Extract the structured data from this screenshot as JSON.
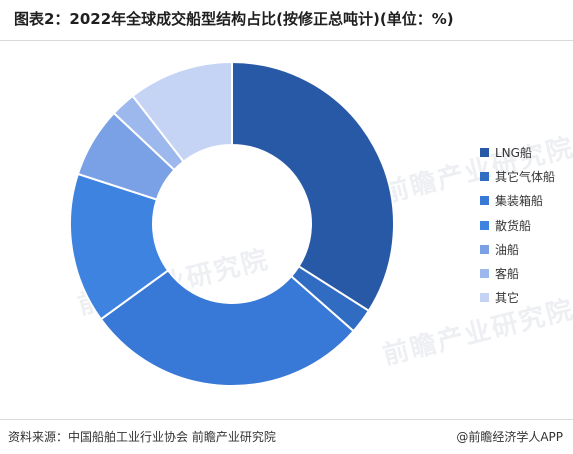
{
  "page": {
    "title": "图表2：2022年全球成交船型结构占比(按修正总吨计)(单位：%)",
    "source": "资料来源：中国船舶工业行业协会 前瞻产业研究院",
    "brand": "@前瞻经济学人APP",
    "watermark": "前瞻产业研究院"
  },
  "chart_data": {
    "type": "pie",
    "donut": true,
    "title": "图表2：2022年全球成交船型结构占比(按修正总吨计)(单位：%)",
    "categories": [
      "LNG船",
      "其它气体船",
      "集装箱船",
      "散货船",
      "油船",
      "客船",
      "其它"
    ],
    "values": [
      34,
      2.5,
      28.5,
      15,
      7,
      2.5,
      10.5
    ],
    "colors": [
      "#2759a7",
      "#2f6cc2",
      "#3878d6",
      "#3f83e0",
      "#7aa1e6",
      "#9db8ec",
      "#c5d3f5"
    ],
    "legend_position": "right"
  }
}
